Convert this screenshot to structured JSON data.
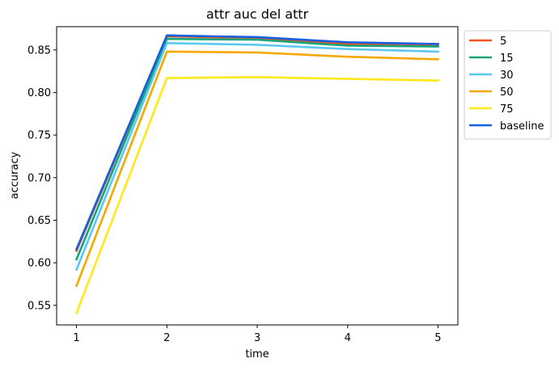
{
  "chart_data": {
    "type": "line",
    "title": "attr auc del attr",
    "xlabel": "time",
    "ylabel": "accuracy",
    "x": [
      1,
      2,
      3,
      4,
      5
    ],
    "xticks": [
      "1",
      "2",
      "3",
      "4",
      "5"
    ],
    "yticks": [
      "0.55",
      "0.60",
      "0.65",
      "0.70",
      "0.75",
      "0.80",
      "0.85"
    ],
    "xlim": [
      0.78,
      5.22
    ],
    "ylim": [
      0.527,
      0.8773
    ],
    "grid": false,
    "legend_position": "outside-upper-right",
    "series": [
      {
        "name": "5",
        "color": "#f4511e",
        "values": [
          0.614,
          0.866,
          0.864,
          0.857,
          0.855
        ]
      },
      {
        "name": "15",
        "color": "#11a579",
        "values": [
          0.604,
          0.863,
          0.862,
          0.855,
          0.854
        ]
      },
      {
        "name": "30",
        "color": "#5ac8f0",
        "values": [
          0.592,
          0.858,
          0.856,
          0.851,
          0.848
        ]
      },
      {
        "name": "50",
        "color": "#f5a800",
        "values": [
          0.573,
          0.848,
          0.847,
          0.842,
          0.839
        ]
      },
      {
        "name": "75",
        "color": "#ffe81a",
        "values": [
          0.541,
          0.817,
          0.818,
          0.816,
          0.814
        ]
      },
      {
        "name": "baseline",
        "color": "#1560e0",
        "values": [
          0.616,
          0.867,
          0.865,
          0.859,
          0.857
        ]
      }
    ]
  }
}
